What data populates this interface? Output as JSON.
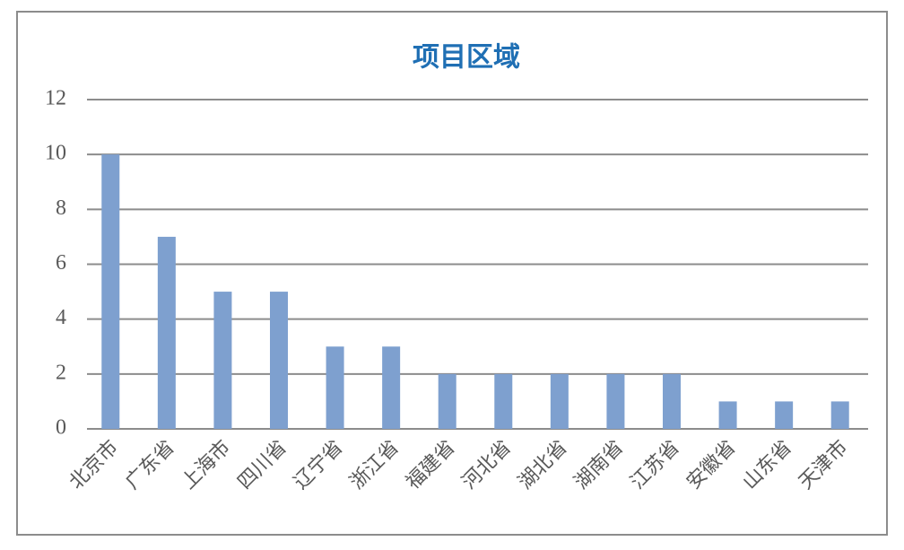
{
  "chart_data": {
    "type": "bar",
    "title": "项目区域",
    "categories": [
      "北京市",
      "广东省",
      "上海市",
      "四川省",
      "辽宁省",
      "浙江省",
      "福建省",
      "河北省",
      "湖北省",
      "湖南省",
      "江苏省",
      "安徽省",
      "山东省",
      "天津市"
    ],
    "values": [
      10,
      7,
      5,
      5,
      3,
      3,
      2,
      2,
      2,
      2,
      2,
      1,
      1,
      1
    ],
    "color": "#7ea0cf",
    "ylim": [
      0,
      12
    ],
    "yticks": [
      0,
      2,
      4,
      6,
      8,
      10,
      12
    ],
    "grid": true
  }
}
